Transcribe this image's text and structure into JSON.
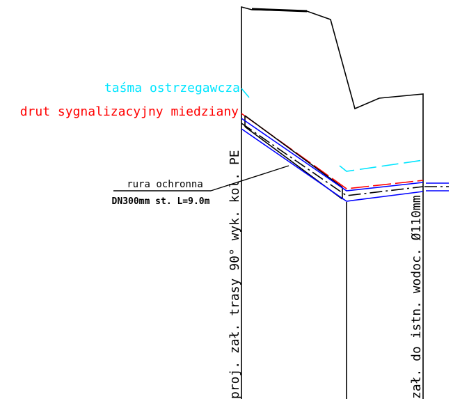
{
  "colors": {
    "background": "#ffffff",
    "outline": "#000000",
    "warning_tape": "#00e5ff",
    "signal_wire": "#ff0000",
    "pipe": "#0000ff",
    "axis": "#000000"
  },
  "labels": {
    "warning_tape": "taśma ostrzegawcza",
    "signal_wire": "drut sygnalizacyjny miedziany",
    "sleeve_title": "rura ochronna",
    "sleeve_spec": "DN300mm st. L=9.0m",
    "left_vertical": "proj. zał. trasy 90° wyk. kol. PE",
    "right_vertical": "zał. do istn. wodoc. Ø110mm"
  }
}
